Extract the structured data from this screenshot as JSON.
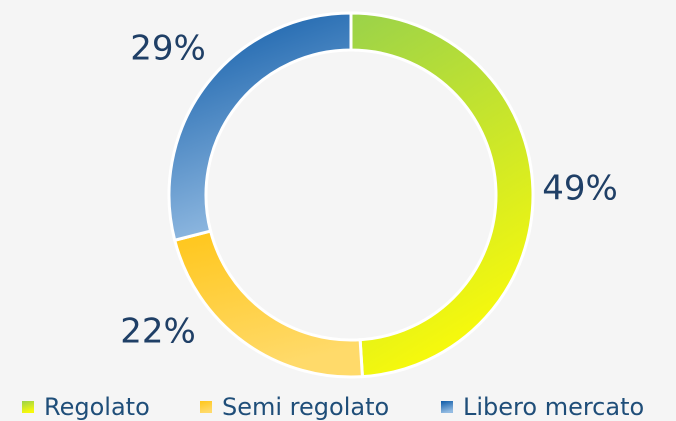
{
  "chart_data": {
    "type": "pie",
    "categories": [
      "Regolato",
      "Semi regolato",
      "Libero mercato"
    ],
    "values": [
      49,
      22,
      29
    ],
    "value_labels": [
      "49%",
      "22%",
      "29%"
    ],
    "colors": [
      "#a6d63e",
      "#ffc61a",
      "#2f73b8"
    ],
    "legend": "bottom"
  }
}
